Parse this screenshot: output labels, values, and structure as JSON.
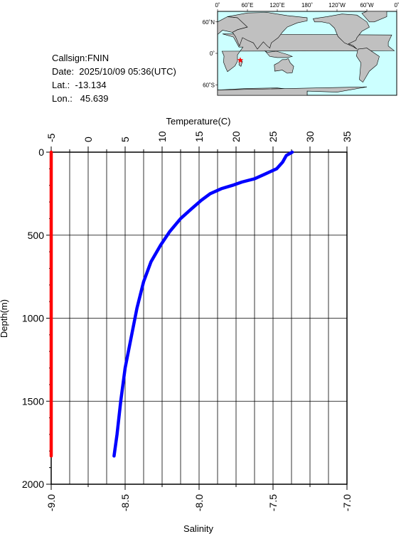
{
  "info": {
    "callsign": "Callsign:FNIN",
    "date": "Date:  2025/10/09 05:36(UTC)",
    "lat": "Lat.:  -13.134",
    "lon": "Lon.:   45.639"
  },
  "map": {
    "lon_labels": [
      "0˚",
      "60˚E",
      "120˚E",
      "180˚",
      "120˚W",
      "60˚W",
      "0˚"
    ],
    "lat_labels": [
      "60˚N",
      "0˚",
      "60˚S"
    ],
    "marker": {
      "lat": -13.134,
      "lon": 45.639,
      "color": "#ff0000"
    },
    "ocean_color": "#ccffff",
    "land_color": "#c0c0c0"
  },
  "chart_data": {
    "type": "line",
    "ylabel": "Depth(m)",
    "ylim": [
      2000,
      0
    ],
    "y_ticks": [
      0,
      500,
      1000,
      1500,
      2000
    ],
    "top_axis": {
      "label": "Temperature(C)",
      "range": [
        -5,
        35
      ],
      "ticks": [
        -5,
        0,
        5,
        10,
        15,
        20,
        25,
        30,
        35
      ],
      "tick_labels": [
        "-5",
        "0",
        "5",
        "10",
        "15",
        "20",
        "25",
        "30",
        "35"
      ]
    },
    "bottom_axis": {
      "label": "Salinity",
      "range": [
        -9.0,
        -7.0
      ],
      "ticks": [
        -9.0,
        -8.5,
        -8.0,
        -7.5,
        -7.0
      ],
      "tick_labels": [
        "-9.0",
        "-8.5",
        "-8.0",
        "-7.5",
        "-7.0"
      ]
    },
    "grid": true,
    "series": [
      {
        "axis": "top",
        "color": "#0000ff",
        "points": [
          [
            27.6,
            0
          ],
          [
            26.8,
            20
          ],
          [
            26.3,
            60
          ],
          [
            25.5,
            100
          ],
          [
            24.0,
            130
          ],
          [
            22.5,
            160
          ],
          [
            20.8,
            180
          ],
          [
            19.5,
            200
          ],
          [
            18.0,
            220
          ],
          [
            16.5,
            250
          ],
          [
            15.3,
            290
          ],
          [
            14.0,
            340
          ],
          [
            12.5,
            400
          ],
          [
            11.0,
            480
          ],
          [
            9.8,
            560
          ],
          [
            8.5,
            660
          ],
          [
            7.5,
            780
          ],
          [
            6.6,
            940
          ],
          [
            5.8,
            1120
          ],
          [
            5.0,
            1300
          ],
          [
            4.4,
            1500
          ],
          [
            3.9,
            1700
          ],
          [
            3.5,
            1830
          ]
        ]
      },
      {
        "axis": "bottom",
        "color": "#ff0000",
        "points": [
          [
            -9.0,
            0
          ],
          [
            -9.0,
            1830
          ]
        ]
      }
    ]
  }
}
